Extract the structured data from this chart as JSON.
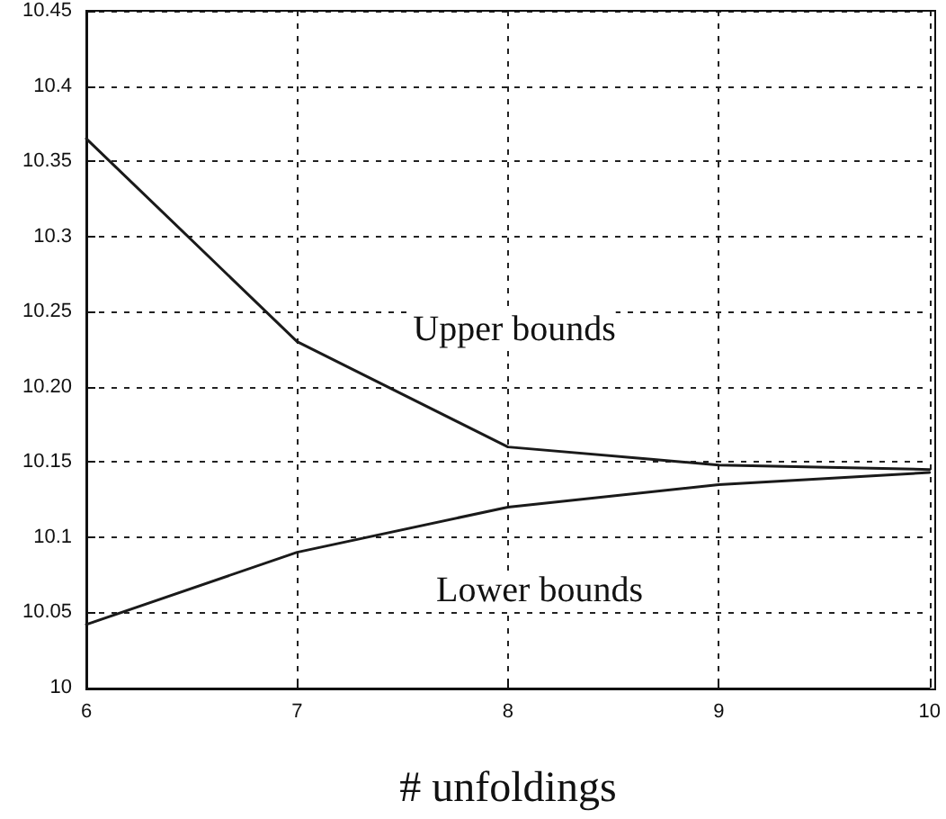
{
  "chart_data": {
    "type": "line",
    "xlabel": "# unfoldings",
    "x": [
      6,
      7,
      8,
      9,
      10
    ],
    "series": [
      {
        "color": "#1a1a1a",
        "values": [
          10.365,
          10.23,
          10.16,
          10.148,
          10.145
        ]
      },
      {
        "color": "#1a1a1a",
        "values": [
          10.042,
          10.09,
          10.12,
          10.135,
          10.143
        ]
      }
    ],
    "xlim": [
      6,
      10
    ],
    "xticks": [
      6,
      7,
      8,
      9,
      10
    ],
    "ylim": [
      10,
      10.45
    ],
    "yticks": [
      10,
      10.05,
      10.1,
      10.15,
      {
        "value": 10.2,
        "label": "10.20"
      },
      10.25,
      10.3,
      10.35,
      10.4,
      10.45
    ],
    "annotations": [
      "Upper bounds",
      "Lower bounds"
    ],
    "grid": true,
    "marker": "none",
    "line_style": "solid"
  }
}
